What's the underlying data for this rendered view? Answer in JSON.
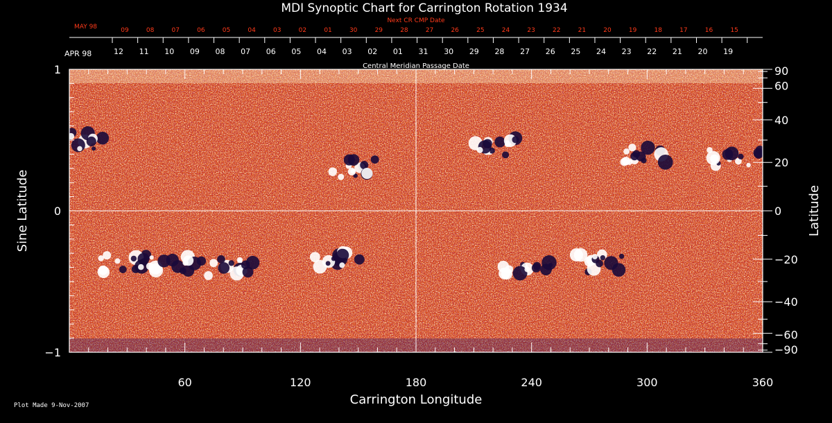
{
  "chart_data": {
    "type": "heatmap",
    "title": "MDI Synoptic Chart for Carrington Rotation 1934",
    "xlabel": "Carrington Longitude",
    "ylabel_left": "Sine Latitude",
    "ylabel_right": "Latitude",
    "xlim": [
      0,
      360
    ],
    "ylim_left": [
      -1,
      1
    ],
    "x_ticks": [
      60,
      120,
      180,
      240,
      300,
      360
    ],
    "y_left_ticks": [
      -1,
      0,
      1
    ],
    "y_right_ticks": [
      90,
      60,
      40,
      20,
      0,
      -20,
      -40,
      -60,
      -90
    ],
    "top_axis_label": "Central Meridian Passage Date",
    "top_axis_month": "APR 98",
    "top_axis_dates": [
      "12",
      "11",
      "10",
      "09",
      "08",
      "07",
      "06",
      "05",
      "04",
      "03",
      "02",
      "01",
      "31",
      "30",
      "29",
      "28",
      "27",
      "26",
      "25",
      "24",
      "23",
      "22",
      "21",
      "20",
      "19"
    ],
    "next_axis_label": "Next CR CMP Date",
    "next_axis_month": "MAY 98",
    "next_axis_dates": [
      "09",
      "08",
      "07",
      "06",
      "05",
      "04",
      "03",
      "02",
      "01",
      "30",
      "29",
      "28",
      "27",
      "26",
      "25",
      "24",
      "23",
      "22",
      "21",
      "20",
      "19",
      "18",
      "17",
      "16",
      "15"
    ],
    "footer": "Plot Made  9-Nov-2007",
    "colors": {
      "field": "#e8561a",
      "positive": "#ffffff",
      "negative": "#1a0a3a",
      "next_axis_text": "#ff3a1a"
    },
    "active_regions": [
      {
        "lon": 6,
        "lat_sine": 0.5,
        "polarity": "mixed"
      },
      {
        "lon": 148,
        "lat_sine": 0.3,
        "polarity": "mixed"
      },
      {
        "lon": 222,
        "lat_sine": 0.45,
        "polarity": "mixed"
      },
      {
        "lon": 300,
        "lat_sine": 0.4,
        "polarity": "mixed"
      },
      {
        "lon": 345,
        "lat_sine": 0.37,
        "polarity": "mixed"
      },
      {
        "lon": 30,
        "lat_sine": -0.37,
        "polarity": "mixed"
      },
      {
        "lon": 55,
        "lat_sine": -0.38,
        "polarity": "mixed"
      },
      {
        "lon": 85,
        "lat_sine": -0.4,
        "polarity": "mixed"
      },
      {
        "lon": 140,
        "lat_sine": -0.35,
        "polarity": "mixed"
      },
      {
        "lon": 238,
        "lat_sine": -0.42,
        "polarity": "mixed"
      },
      {
        "lon": 275,
        "lat_sine": -0.37,
        "polarity": "mixed"
      }
    ]
  }
}
